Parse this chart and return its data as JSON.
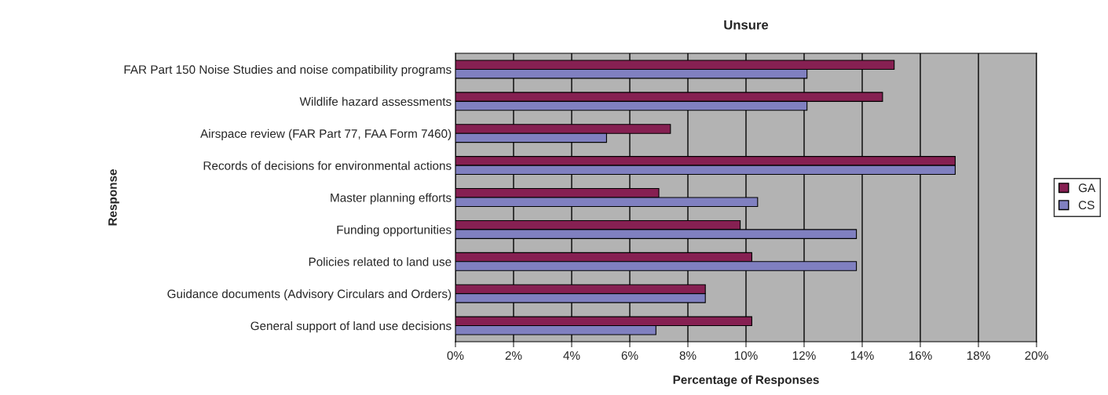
{
  "chart_data": {
    "type": "bar",
    "orientation": "horizontal",
    "title": "Unsure",
    "xlabel": "Percentage of Responses",
    "ylabel": "Response",
    "categories": [
      "FAR Part 150 Noise Studies and noise compatibility programs",
      "Wildlife hazard assessments",
      "Airspace review (FAR Part 77, FAA Form 7460)",
      "Records of decisions for environmental actions",
      "Master planning efforts",
      "Funding opportunities",
      "Policies related to land use",
      "Guidance documents (Advisory Circulars and Orders)",
      "General support of land use decisions"
    ],
    "series": [
      {
        "name": "GA",
        "color": "#862052",
        "values": [
          15.1,
          14.7,
          7.4,
          17.2,
          7.0,
          9.8,
          10.2,
          8.6,
          10.2
        ]
      },
      {
        "name": "CS",
        "color": "#8080c0",
        "values": [
          12.1,
          12.1,
          5.2,
          17.2,
          10.4,
          13.8,
          13.8,
          8.6,
          6.9
        ]
      }
    ],
    "xlim": [
      0,
      20
    ],
    "xticks": [
      {
        "value": 0,
        "label": "0%"
      },
      {
        "value": 2,
        "label": "2%"
      },
      {
        "value": 4,
        "label": "4%"
      },
      {
        "value": 6,
        "label": "6%"
      },
      {
        "value": 8,
        "label": "8%"
      },
      {
        "value": 10,
        "label": "10%"
      },
      {
        "value": 12,
        "label": "12%"
      },
      {
        "value": 14,
        "label": "14%"
      },
      {
        "value": 16,
        "label": "16%"
      },
      {
        "value": 18,
        "label": "18%"
      },
      {
        "value": 20,
        "label": "20%"
      }
    ],
    "grid": "x",
    "legend": "right"
  }
}
